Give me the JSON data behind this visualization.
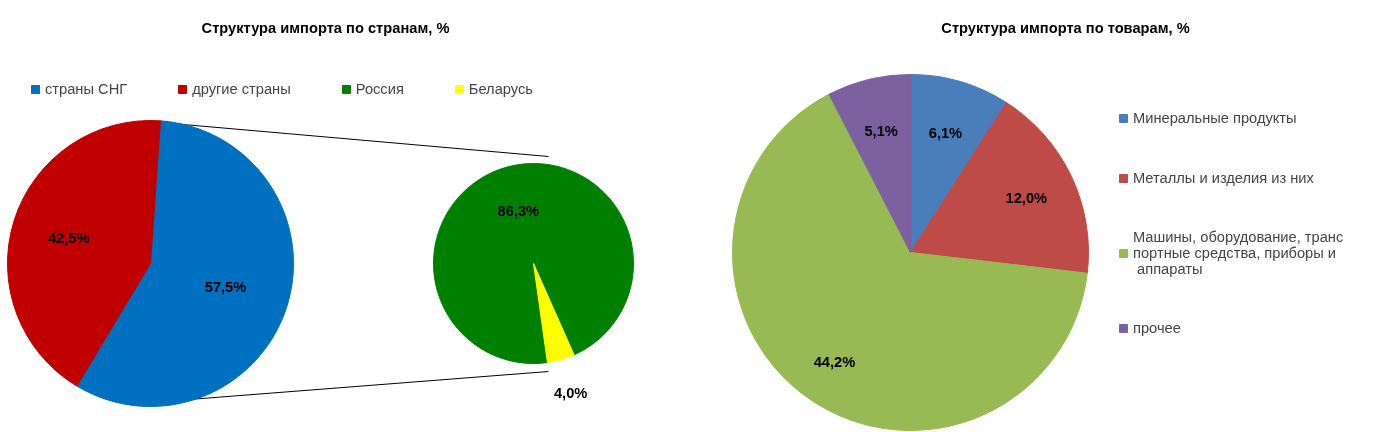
{
  "chart_data": [
    {
      "type": "pie",
      "title": "Структура импорта по странам, %",
      "categories": [
        "страны СНГ",
        "другие страны"
      ],
      "values": [
        57.5,
        42.5
      ],
      "colors": [
        "#0070c0",
        "#c00000"
      ],
      "value_labels": [
        "57,5%",
        "42,5%"
      ],
      "legend": "top"
    },
    {
      "type": "pie",
      "categories": [
        "Россия",
        "Беларусь"
      ],
      "values": [
        86.3,
        4.0
      ],
      "colors": [
        "#008000",
        "#ffff00"
      ],
      "value_labels": [
        "86,3%",
        "4,0%"
      ],
      "legend": "top"
    },
    {
      "type": "pie",
      "title": "Структура импорта по товарам, %",
      "categories": [
        "Минеральные продукты",
        "Металлы и изделия из них",
        "Машины, оборудование, транспортные средства, приборы и аппараты",
        "прочее"
      ],
      "values": [
        6.1,
        12.0,
        44.2,
        5.1
      ],
      "colors": [
        "#4a7ebb",
        "#be4b48",
        "#98b954",
        "#7d60a0"
      ],
      "value_labels": [
        "6,1%",
        "12,0%",
        "44,2%",
        "5,1%"
      ],
      "legend": "right"
    }
  ]
}
